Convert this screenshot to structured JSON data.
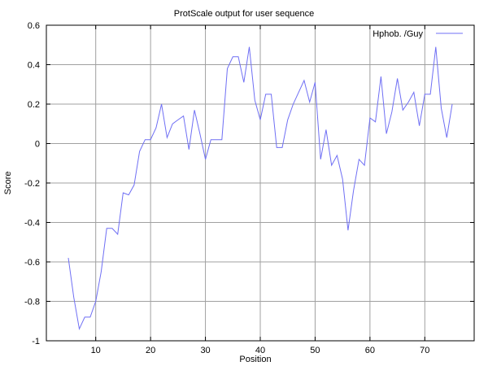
{
  "chart_data": {
    "type": "line",
    "title": "ProtScale output for user sequence",
    "xlabel": "Position",
    "ylabel": "Score",
    "xlim": [
      1,
      79
    ],
    "ylim": [
      -1,
      0.6
    ],
    "xticks": [
      10,
      20,
      30,
      40,
      50,
      60,
      70
    ],
    "yticks": [
      -1,
      -0.8,
      -0.6,
      -0.4,
      -0.2,
      0,
      0.2,
      0.4,
      0.6
    ],
    "ytick_labels": [
      "-1",
      "-0.8",
      "-0.6",
      "-0.4",
      "-0.2",
      "0",
      "0.2",
      "0.4",
      "0.6"
    ],
    "grid": true,
    "legend_position": "top-right",
    "colors": {
      "series": "#6f6ff4",
      "grid": "#a0a0a0",
      "axis": "#000000"
    },
    "series": [
      {
        "name": "Hphob.  /Guy",
        "x": [
          5,
          6,
          7,
          8,
          9,
          10,
          11,
          12,
          13,
          14,
          15,
          16,
          17,
          18,
          19,
          20,
          21,
          22,
          23,
          24,
          25,
          26,
          27,
          28,
          29,
          30,
          31,
          32,
          33,
          34,
          35,
          36,
          37,
          38,
          39,
          40,
          41,
          42,
          43,
          44,
          45,
          46,
          47,
          48,
          49,
          50,
          51,
          52,
          53,
          54,
          55,
          56,
          57,
          58,
          59,
          60,
          61,
          62,
          63,
          64,
          65,
          66,
          67,
          68,
          69,
          70,
          71,
          72,
          73,
          74,
          75
        ],
        "values": [
          -0.58,
          -0.78,
          -0.94,
          -0.88,
          -0.88,
          -0.8,
          -0.65,
          -0.43,
          -0.43,
          -0.46,
          -0.25,
          -0.26,
          -0.21,
          -0.04,
          0.02,
          0.02,
          0.08,
          0.2,
          0.03,
          0.1,
          0.12,
          0.14,
          -0.03,
          0.17,
          0.05,
          -0.08,
          0.02,
          0.02,
          0.02,
          0.38,
          0.44,
          0.44,
          0.31,
          0.49,
          0.22,
          0.12,
          0.25,
          0.25,
          -0.02,
          -0.02,
          0.12,
          0.2,
          0.26,
          0.32,
          0.21,
          0.31,
          -0.08,
          0.07,
          -0.11,
          -0.06,
          -0.18,
          -0.44,
          -0.24,
          -0.08,
          -0.11,
          0.13,
          0.11,
          0.34,
          0.05,
          0.16,
          0.33,
          0.17,
          0.21,
          0.26,
          0.09,
          0.25,
          0.25,
          0.49,
          0.18,
          0.03,
          0.2
        ]
      }
    ]
  }
}
